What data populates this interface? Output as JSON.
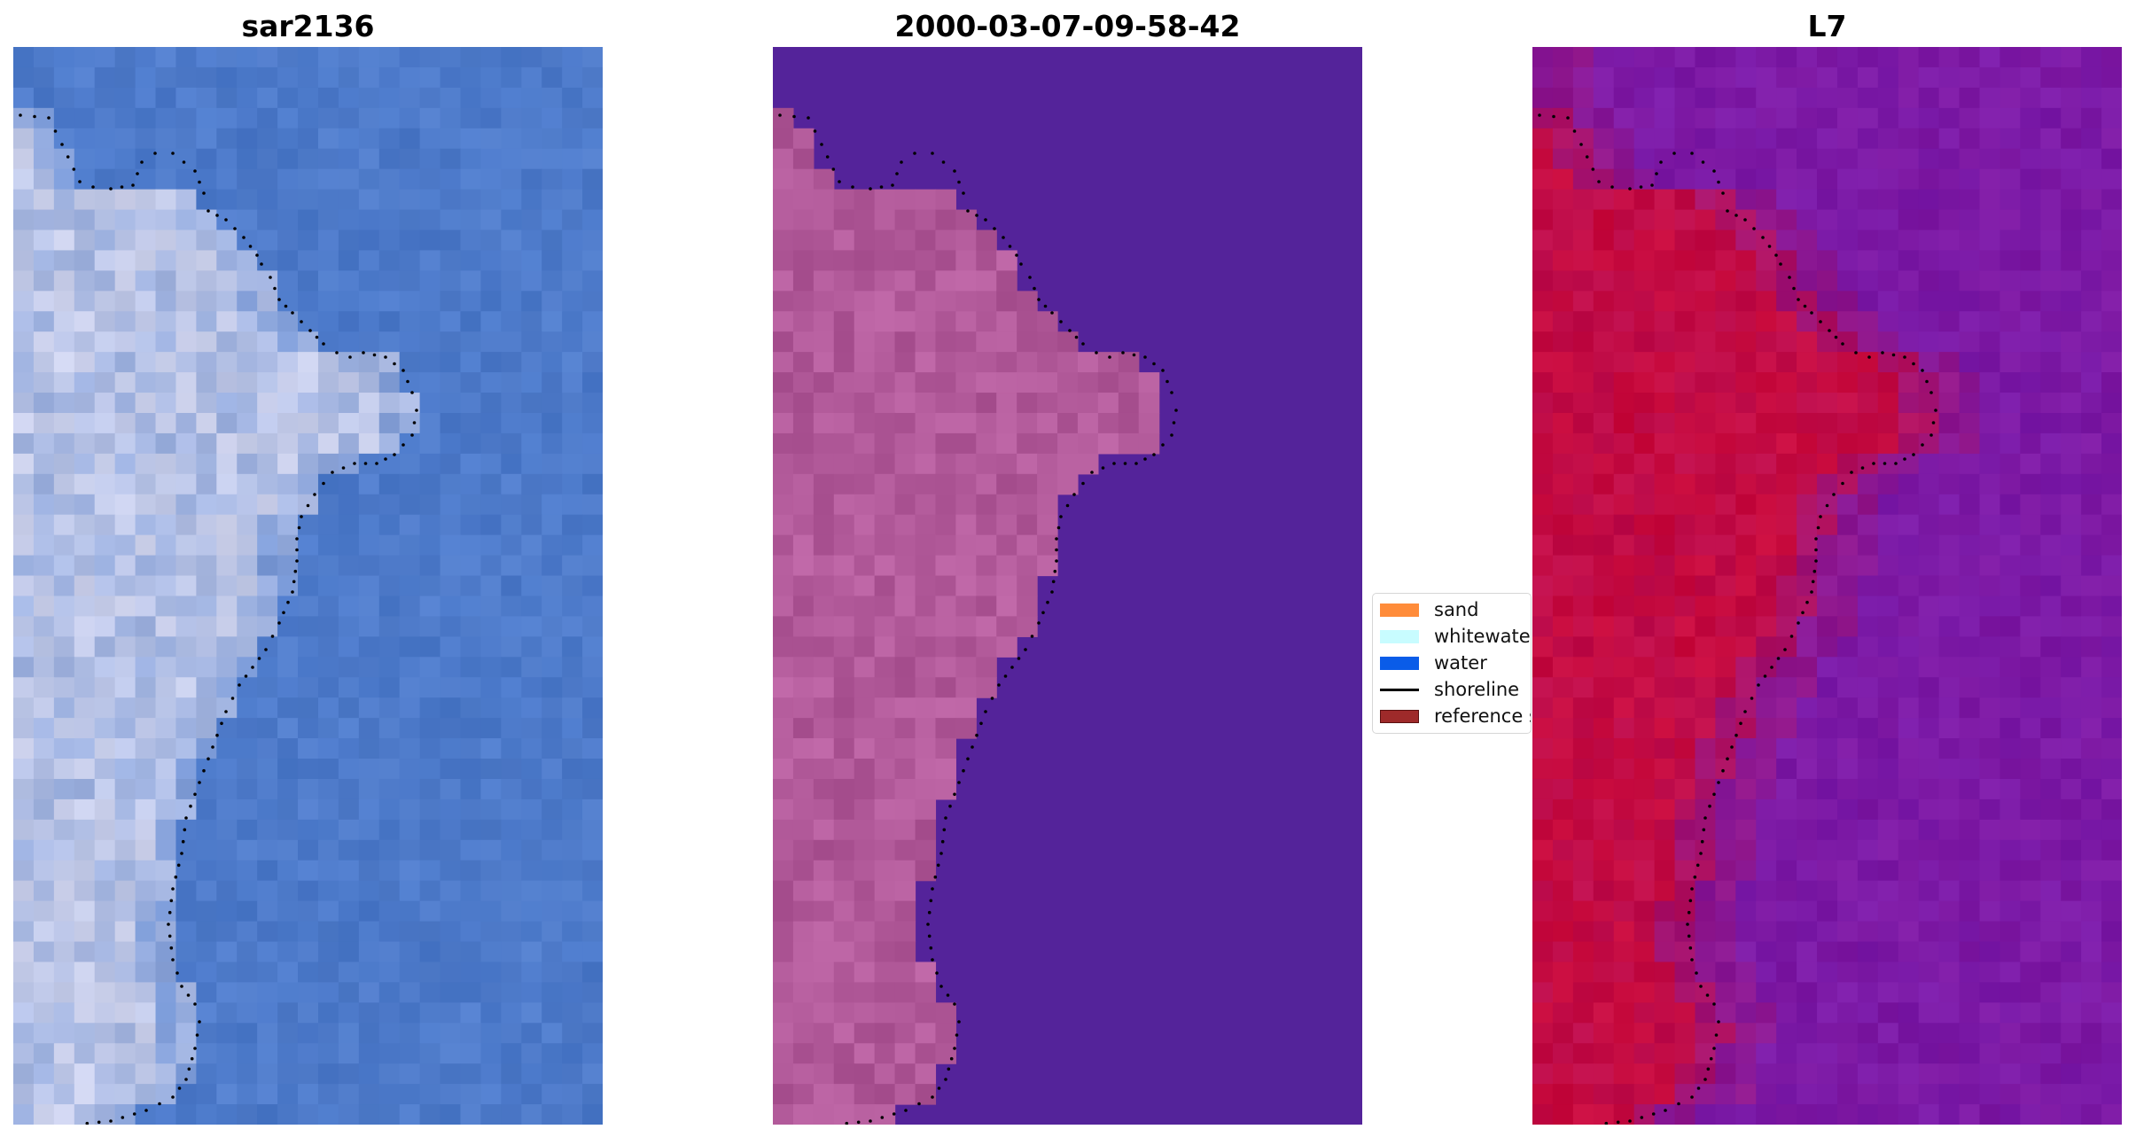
{
  "figure": {
    "panels": [
      {
        "title": "sar2136",
        "view": "rgb"
      },
      {
        "title": "2000-03-07-09-58-42",
        "view": "classified"
      },
      {
        "title": "L7",
        "view": "index"
      }
    ],
    "legend": [
      {
        "label": "sand",
        "color": "#ff8c3a",
        "kind": "patch"
      },
      {
        "label": "whitewater",
        "color": "#c8fcff",
        "kind": "patch"
      },
      {
        "label": "water",
        "color": "#0a5ce8",
        "kind": "patch"
      },
      {
        "label": "shoreline",
        "color": "#000000",
        "kind": "line"
      },
      {
        "label": "reference shoreline",
        "color": "#9e2a2a",
        "kind": "patch"
      }
    ],
    "colors": {
      "rgb_water": "#4a78c9",
      "rgb_land": "#dcdcf0",
      "classified_background": "#54239a",
      "classified_land": "#b25a9a",
      "index_water": "#7a1aa8",
      "index_land": "#c80a3c",
      "shoreline": "#000000"
    }
  }
}
